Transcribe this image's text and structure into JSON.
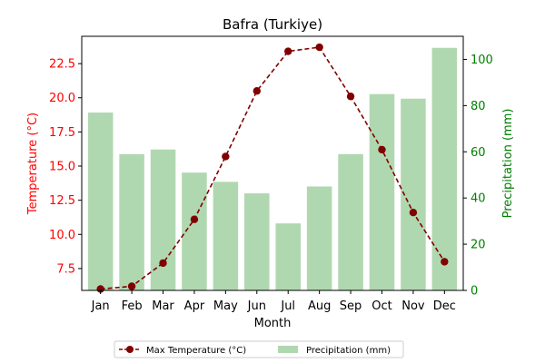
{
  "chart_data": {
    "type": "bar+line",
    "title": "Bafra (Turkiye)",
    "xlabel": "Month",
    "categories": [
      "Jan",
      "Feb",
      "Mar",
      "Apr",
      "May",
      "Jun",
      "Jul",
      "Aug",
      "Sep",
      "Oct",
      "Nov",
      "Dec"
    ],
    "left_axis": {
      "label": "Temperature (°C)",
      "color": "#ff0000",
      "ylim": [
        5.9,
        24.5
      ],
      "ticks": [
        7.5,
        10.0,
        12.5,
        15.0,
        17.5,
        20.0,
        22.5
      ],
      "tick_labels": [
        "7.5",
        "10.0",
        "12.5",
        "15.0",
        "17.5",
        "20.0",
        "22.5"
      ]
    },
    "right_axis": {
      "label": "Precipitation (mm)",
      "color": "#008000",
      "ylim": [
        0,
        110
      ],
      "ticks": [
        0,
        20,
        40,
        60,
        80,
        100
      ],
      "tick_labels": [
        "0",
        "20",
        "40",
        "60",
        "80",
        "100"
      ]
    },
    "series": [
      {
        "name": "Max Temperature (°C)",
        "kind": "line",
        "axis": "left",
        "color": "#800000",
        "style": "dashed",
        "marker": "circle",
        "values": [
          6.0,
          6.2,
          7.9,
          11.1,
          15.7,
          20.5,
          23.4,
          23.7,
          20.1,
          16.2,
          11.6,
          8.0
        ]
      },
      {
        "name": "Precipitation (mm)",
        "kind": "bar",
        "axis": "right",
        "color": "#b0d8b0",
        "values": [
          77,
          59,
          61,
          51,
          47,
          42,
          29,
          45,
          59,
          85,
          83,
          105
        ]
      }
    ],
    "legend": {
      "placement": "bottom-center",
      "entries": [
        "Max Temperature (°C)",
        "Precipitation (mm)"
      ]
    },
    "grid": false
  }
}
